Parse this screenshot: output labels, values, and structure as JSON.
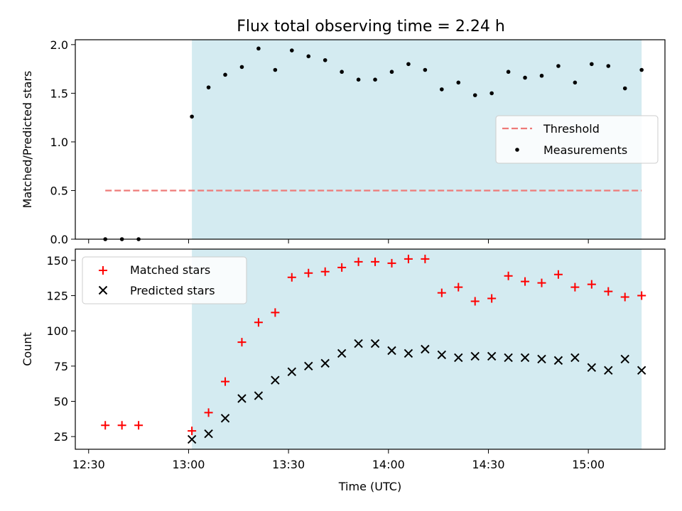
{
  "figure": {
    "title": "Flux total observing time = 2.24 h"
  },
  "colors": {
    "shade": "#d4ebf1",
    "threshold": "#ee7a78",
    "measurement": "#000000",
    "matched": "#ff0000",
    "predicted": "#000000"
  },
  "chart_data": [
    {
      "type": "scatter",
      "ylabel": "Matched/Predicted stars",
      "xlabel": "",
      "xlim": [
        "12:26",
        "15:23"
      ],
      "ylim": [
        0,
        2.05
      ],
      "yticks": [
        0.0,
        0.5,
        1.0,
        1.5,
        2.0
      ],
      "ytick_labels": [
        "0.0",
        "0.5",
        "1.0",
        "1.5",
        "2.0"
      ],
      "shaded_interval": [
        "13:01",
        "15:16"
      ],
      "legend_position": "center-right",
      "grid": false,
      "threshold": {
        "label": "Threshold",
        "value": 0.5,
        "x_range": [
          "12:35",
          "15:16"
        ]
      },
      "series": [
        {
          "name": "Measurements",
          "x": [
            "12:35",
            "12:40",
            "12:45",
            "13:01",
            "13:06",
            "13:11",
            "13:16",
            "13:21",
            "13:26",
            "13:31",
            "13:36",
            "13:41",
            "13:46",
            "13:51",
            "13:56",
            "14:01",
            "14:06",
            "14:11",
            "14:16",
            "14:21",
            "14:26",
            "14:31",
            "14:36",
            "14:41",
            "14:46",
            "14:51",
            "14:56",
            "15:01",
            "15:06",
            "15:11",
            "15:16"
          ],
          "y": [
            0.0,
            0.0,
            0.0,
            1.26,
            1.56,
            1.69,
            1.77,
            1.96,
            1.74,
            1.94,
            1.88,
            1.84,
            1.72,
            1.64,
            1.64,
            1.72,
            1.8,
            1.74,
            1.54,
            1.61,
            1.48,
            1.5,
            1.72,
            1.66,
            1.68,
            1.78,
            1.61,
            1.8,
            1.78,
            1.55,
            1.74
          ]
        }
      ]
    },
    {
      "type": "scatter",
      "ylabel": "Count",
      "xlabel": "Time (UTC)",
      "xlim": [
        "12:26",
        "15:23"
      ],
      "ylim": [
        16,
        158
      ],
      "yticks": [
        25,
        50,
        75,
        100,
        125,
        150
      ],
      "ytick_labels": [
        "25",
        "50",
        "75",
        "100",
        "125",
        "150"
      ],
      "xticks": [
        "12:30",
        "13:00",
        "13:30",
        "14:00",
        "14:30",
        "15:00"
      ],
      "xtick_labels": [
        "12:30",
        "13:00",
        "13:30",
        "14:00",
        "14:30",
        "15:00"
      ],
      "shaded_interval": [
        "13:01",
        "15:16"
      ],
      "legend_position": "upper-left",
      "grid": false,
      "series": [
        {
          "name": "Matched stars",
          "x": [
            "12:35",
            "12:40",
            "12:45",
            "13:01",
            "13:06",
            "13:11",
            "13:16",
            "13:21",
            "13:26",
            "13:31",
            "13:36",
            "13:41",
            "13:46",
            "13:51",
            "13:56",
            "14:01",
            "14:06",
            "14:11",
            "14:16",
            "14:21",
            "14:26",
            "14:31",
            "14:36",
            "14:41",
            "14:46",
            "14:51",
            "14:56",
            "15:01",
            "15:06",
            "15:11",
            "15:16"
          ],
          "y": [
            33,
            33,
            33,
            29,
            42,
            64,
            92,
            106,
            113,
            138,
            141,
            142,
            145,
            149,
            149,
            148,
            151,
            151,
            127,
            131,
            121,
            123,
            139,
            135,
            134,
            140,
            131,
            133,
            128,
            124,
            125
          ]
        },
        {
          "name": "Predicted stars",
          "x": [
            "13:01",
            "13:06",
            "13:11",
            "13:16",
            "13:21",
            "13:26",
            "13:31",
            "13:36",
            "13:41",
            "13:46",
            "13:51",
            "13:56",
            "14:01",
            "14:06",
            "14:11",
            "14:16",
            "14:21",
            "14:26",
            "14:31",
            "14:36",
            "14:41",
            "14:46",
            "14:51",
            "14:56",
            "15:01",
            "15:06",
            "15:11",
            "15:16"
          ],
          "y": [
            23,
            27,
            38,
            52,
            54,
            65,
            71,
            75,
            77,
            84,
            91,
            91,
            86,
            84,
            87,
            83,
            81,
            82,
            82,
            81,
            81,
            80,
            79,
            81,
            74,
            72,
            80,
            72
          ]
        }
      ]
    }
  ]
}
